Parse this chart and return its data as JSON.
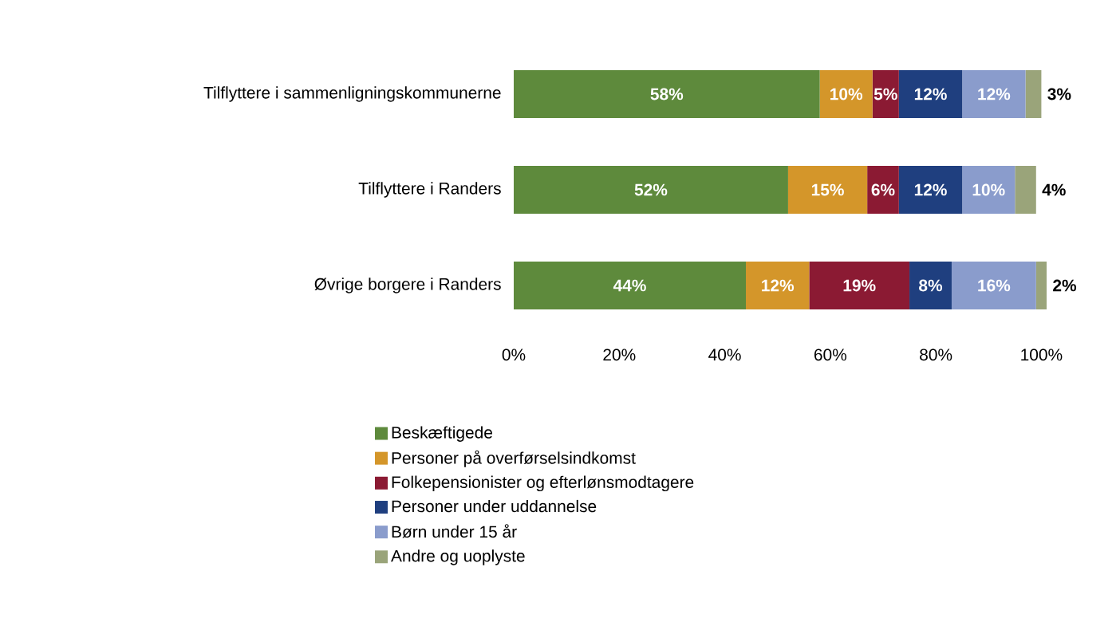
{
  "chart_data": {
    "type": "bar",
    "orientation": "horizontal",
    "stacked": true,
    "legend": "bottom",
    "data_labels": true,
    "categories": [
      "Tilflyttere i sammenligningskommunerne",
      "Tilflyttere i Randers",
      "Øvrige borgere i Randers"
    ],
    "xlim": [
      0,
      101
    ],
    "xticks": [
      {
        "value": 0,
        "label": "0%"
      },
      {
        "value": 20,
        "label": "20%"
      },
      {
        "value": 40,
        "label": "40%"
      },
      {
        "value": 60,
        "label": "60%"
      },
      {
        "value": 80,
        "label": "80%"
      },
      {
        "value": 100,
        "label": "100%"
      }
    ],
    "series": [
      {
        "name": "Beskæftigede",
        "color": "#5e8a3c",
        "values": [
          58,
          52,
          44
        ],
        "value_labels": [
          "58%",
          "52%",
          "44%"
        ]
      },
      {
        "name": "Personer på overførselsindkomst",
        "color": "#d4962a",
        "values": [
          10,
          15,
          12
        ],
        "value_labels": [
          "10%",
          "15%",
          "12%"
        ]
      },
      {
        "name": "Folkepensionister og efterlønsmodtagere",
        "color": "#8b1a33",
        "values": [
          5,
          6,
          19
        ],
        "value_labels": [
          "5%",
          "6%",
          "19%"
        ]
      },
      {
        "name": "Personer under uddannelse",
        "color": "#1f3f7f",
        "values": [
          12,
          12,
          8
        ],
        "value_labels": [
          "12%",
          "12%",
          "8%"
        ]
      },
      {
        "name": "Børn under 15 år",
        "color": "#8a9ccc",
        "values": [
          12,
          10,
          16
        ],
        "value_labels": [
          "12%",
          "10%",
          "16%"
        ]
      },
      {
        "name": "Andre og uoplyste",
        "color": "#9aa47a",
        "values": [
          3,
          4,
          2
        ],
        "value_labels": [
          "3%",
          "4%",
          "2%"
        ]
      }
    ]
  }
}
